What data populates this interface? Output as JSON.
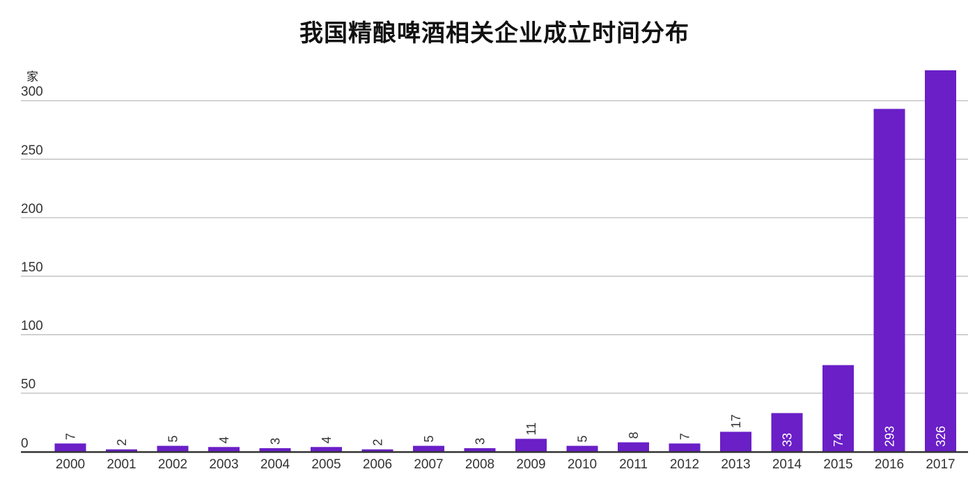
{
  "title": "我国精酿啤酒相关企业成立时间分布",
  "chart_data": {
    "type": "bar",
    "title": "我国精酿啤酒相关企业成立时间分布",
    "ylabel": "家",
    "xlabel": "",
    "categories": [
      "2000",
      "2001",
      "2002",
      "2003",
      "2004",
      "2005",
      "2006",
      "2007",
      "2008",
      "2009",
      "2010",
      "2011",
      "2012",
      "2013",
      "2014",
      "2015",
      "2016",
      "2017"
    ],
    "values": [
      7,
      2,
      5,
      4,
      3,
      4,
      2,
      5,
      3,
      11,
      5,
      8,
      7,
      17,
      33,
      74,
      293,
      326
    ],
    "ylim": [
      0,
      326
    ],
    "yticks": [
      0,
      50,
      100,
      150,
      200,
      250,
      300
    ],
    "grid": true,
    "bar_color": "#6a1fc7",
    "label_color_outside": "#333333",
    "label_color_inside": "#ffffff"
  }
}
